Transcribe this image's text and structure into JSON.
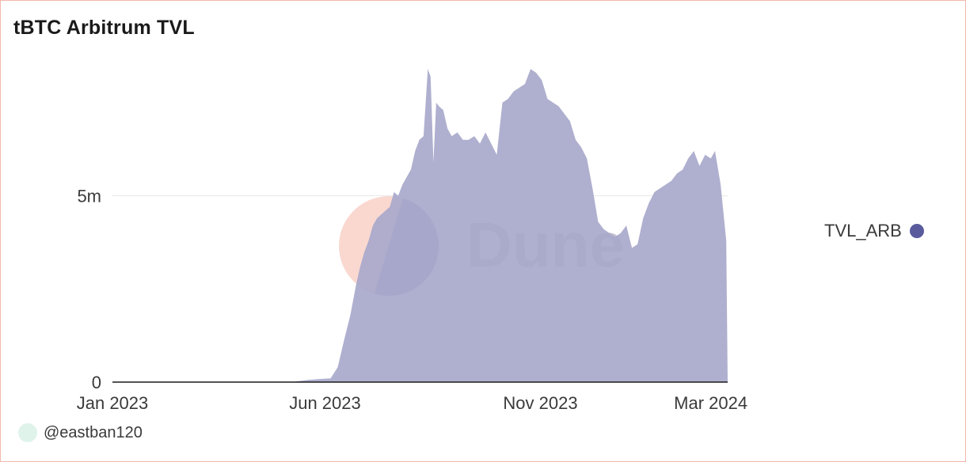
{
  "title": "tBTC Arbitrum TVL",
  "author": "@eastban120",
  "watermark": "Dune",
  "colors": {
    "series": "#a8a8cb",
    "legend_dot": "#595b9d",
    "border": "#f2b8aa",
    "watermark_top": "#f7c8bc",
    "watermark_bottom": "#595b9d"
  },
  "chart_data": {
    "type": "area",
    "title": "tBTC Arbitrum TVL",
    "xlabel": "",
    "ylabel": "",
    "x_ticks": [
      "Jan 2023",
      "Jun 2023",
      "Nov 2023",
      "Mar 2024"
    ],
    "y_ticks": [
      "0",
      "5m"
    ],
    "ylim": [
      0,
      9000000
    ],
    "grid": true,
    "legend_position": "right",
    "series": [
      {
        "name": "TVL_ARB",
        "x": [
          "2023-01-01",
          "2023-05-08",
          "2023-05-20",
          "2023-05-27",
          "2023-06-05",
          "2023-06-10",
          "2023-06-15",
          "2023-06-19",
          "2023-06-23",
          "2023-06-26",
          "2023-06-29",
          "2023-07-02",
          "2023-07-05",
          "2023-07-08",
          "2023-07-11",
          "2023-07-14",
          "2023-07-17",
          "2023-07-20",
          "2023-07-23",
          "2023-07-26",
          "2023-07-29",
          "2023-08-01",
          "2023-08-04",
          "2023-08-07",
          "2023-08-10",
          "2023-08-13",
          "2023-08-15",
          "2023-08-17",
          "2023-08-19",
          "2023-08-21",
          "2023-08-24",
          "2023-08-27",
          "2023-08-30",
          "2023-09-03",
          "2023-09-07",
          "2023-09-11",
          "2023-09-15",
          "2023-09-19",
          "2023-09-23",
          "2023-09-27",
          "2023-10-01",
          "2023-10-05",
          "2023-10-09",
          "2023-10-13",
          "2023-10-17",
          "2023-10-21",
          "2023-10-25",
          "2023-10-29",
          "2023-11-02",
          "2023-11-06",
          "2023-11-10",
          "2023-11-14",
          "2023-11-18",
          "2023-11-22",
          "2023-11-26",
          "2023-11-30",
          "2023-12-04",
          "2023-12-08",
          "2023-12-12",
          "2023-12-16",
          "2023-12-20",
          "2023-12-24",
          "2023-12-28",
          "2024-01-01",
          "2024-01-05",
          "2024-01-09",
          "2024-01-13",
          "2024-01-17",
          "2024-01-21",
          "2024-01-25",
          "2024-01-29",
          "2024-02-02",
          "2024-02-06",
          "2024-02-10",
          "2024-02-14",
          "2024-02-18",
          "2024-02-22",
          "2024-02-26",
          "2024-03-01",
          "2024-03-04",
          "2024-03-08",
          "2024-03-12",
          "2024-03-13"
        ],
        "values": [
          0,
          0,
          60000,
          80000,
          100000,
          400000,
          1200000,
          1800000,
          2600000,
          3100000,
          3500000,
          3800000,
          4200000,
          4400000,
          4500000,
          4600000,
          4700000,
          5100000,
          5000000,
          5300000,
          5500000,
          5700000,
          6200000,
          6500000,
          6600000,
          8400000,
          8200000,
          5900000,
          7500000,
          7400000,
          7300000,
          6800000,
          6600000,
          6700000,
          6500000,
          6500000,
          6600000,
          6400000,
          6700000,
          6400000,
          6100000,
          7500000,
          7600000,
          7800000,
          7900000,
          8000000,
          8400000,
          8300000,
          8100000,
          7600000,
          7500000,
          7400000,
          7200000,
          7000000,
          6500000,
          6300000,
          6000000,
          5200000,
          4300000,
          4100000,
          4000000,
          3900000,
          4000000,
          4200000,
          3600000,
          3700000,
          4400000,
          4800000,
          5100000,
          5200000,
          5300000,
          5400000,
          5600000,
          5700000,
          6000000,
          6200000,
          5800000,
          6100000,
          6000000,
          6200000,
          5300000,
          3800000,
          0
        ]
      }
    ]
  }
}
